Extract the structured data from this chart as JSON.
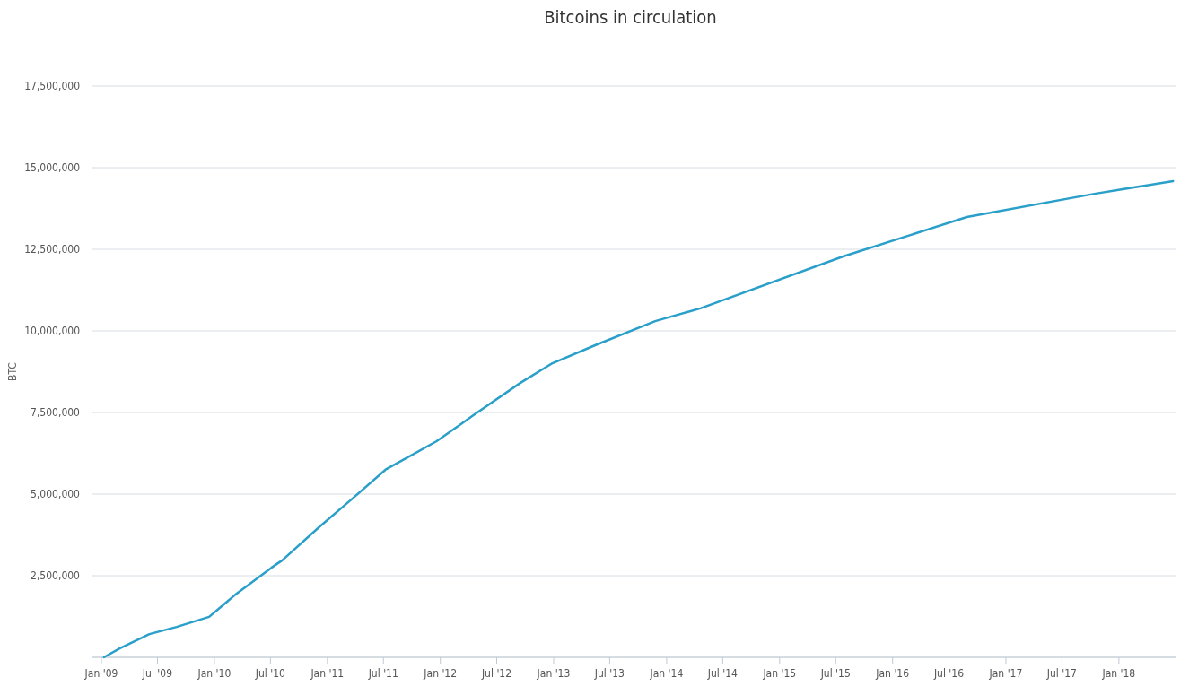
{
  "chart_data": {
    "type": "line",
    "title": "Bitcoins in circulation",
    "ylabel": "BTC",
    "x": [
      "2009-01-09",
      "2009-03-01",
      "2009-06-05",
      "2009-09-01",
      "2009-12-15",
      "2010-03-10",
      "2010-07-05",
      "2010-08-08",
      "2010-12-08",
      "2011-03-20",
      "2011-07-08",
      "2011-12-20",
      "2012-04-22",
      "2012-09-16",
      "2012-12-28",
      "2013-05-15",
      "2013-11-25",
      "2014-04-20",
      "2015-07-25",
      "2016-08-28",
      "2017-10-14",
      "2018-06-25"
    ],
    "series": [
      {
        "color": "#2a9fc9",
        "values": [
          0,
          270000,
          710000,
          930000,
          1240000,
          1920000,
          2750000,
          2970000,
          4010000,
          4840000,
          5750000,
          6620000,
          7450000,
          8410000,
          9010000,
          9560000,
          10300000,
          10690000,
          12280000,
          13490000,
          14200000,
          14590000
        ]
      }
    ],
    "xlim": [
      "2008-12-03",
      "2018-07-03"
    ],
    "xticks": [
      {
        "value": "2009-01-01",
        "label": "Jan '09"
      },
      {
        "value": "2009-07-01",
        "label": "Jul '09"
      },
      {
        "value": "2010-01-01",
        "label": "Jan '10"
      },
      {
        "value": "2010-07-01",
        "label": "Jul '10"
      },
      {
        "value": "2011-01-01",
        "label": "Jan '11"
      },
      {
        "value": "2011-07-01",
        "label": "Jul '11"
      },
      {
        "value": "2012-01-01",
        "label": "Jan '12"
      },
      {
        "value": "2012-07-01",
        "label": "Jul '12"
      },
      {
        "value": "2013-01-01",
        "label": "Jan '13"
      },
      {
        "value": "2013-07-01",
        "label": "Jul '13"
      },
      {
        "value": "2014-01-01",
        "label": "Jan '14"
      },
      {
        "value": "2014-07-01",
        "label": "Jul '14"
      },
      {
        "value": "2015-01-01",
        "label": "Jan '15"
      },
      {
        "value": "2015-07-01",
        "label": "Jul '15"
      },
      {
        "value": "2016-01-01",
        "label": "Jan '16"
      },
      {
        "value": "2016-07-01",
        "label": "Jul '16"
      },
      {
        "value": "2017-01-01",
        "label": "Jan '17"
      },
      {
        "value": "2017-07-01",
        "label": "Jul '17"
      },
      {
        "value": "2018-01-01",
        "label": "Jan '18"
      }
    ],
    "ylim": [
      0,
      17500000
    ],
    "yticks": [
      {
        "value": 0,
        "label": null
      },
      {
        "value": 2500000,
        "label": "2,500,000"
      },
      {
        "value": 5000000,
        "label": "5,000,000"
      },
      {
        "value": 7500000,
        "label": "7,500,000"
      },
      {
        "value": 10000000,
        "label": "10,000,000"
      },
      {
        "value": 12500000,
        "label": "12,500,000"
      },
      {
        "value": 15000000,
        "label": "15,000,000"
      },
      {
        "value": 17500000,
        "label": "17,500,000"
      }
    ],
    "grid": "y",
    "marker": "none",
    "line_style": "solid"
  }
}
